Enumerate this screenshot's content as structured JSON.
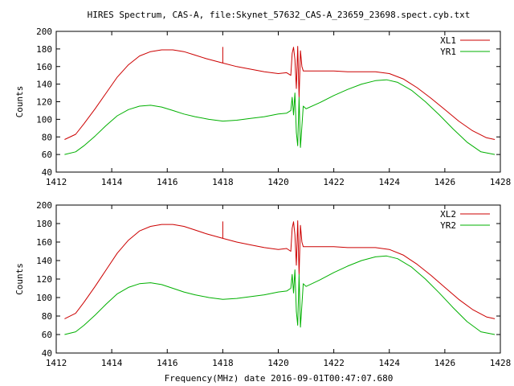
{
  "title": "HIRES Spectrum, CAS-A, file:Skynet_57632_CAS-A_23659_23698.spect.cyb.txt",
  "xlabel": "Frequency(MHz) date 2016-09-01T00:47:07.680",
  "colors": {
    "red": "#cc0000",
    "green": "#00b000"
  },
  "chart_data": [
    {
      "type": "line",
      "ylabel": "Counts",
      "xlim": [
        1412,
        1428
      ],
      "ylim": [
        40,
        200
      ],
      "xticks": [
        1412,
        1414,
        1416,
        1418,
        1420,
        1422,
        1424,
        1426,
        1428
      ],
      "yticks": [
        40,
        60,
        80,
        100,
        120,
        140,
        160,
        180,
        200
      ],
      "grid": false,
      "legend": "top-right",
      "series": [
        {
          "name": "XL1",
          "color": "#cc0000",
          "x": [
            1412.3,
            1412.7,
            1413.0,
            1413.4,
            1413.8,
            1414.2,
            1414.6,
            1415.0,
            1415.4,
            1415.8,
            1416.2,
            1416.6,
            1417.0,
            1417.4,
            1418.0,
            1418.0,
            1418.0,
            1418.0,
            1418.5,
            1419.0,
            1419.5,
            1420.0,
            1420.3,
            1420.45,
            1420.5,
            1420.55,
            1420.6,
            1420.65,
            1420.7,
            1420.75,
            1420.8,
            1420.85,
            1420.9,
            1421.0,
            1421.5,
            1422.0,
            1422.5,
            1423.0,
            1423.5,
            1424.0,
            1424.5,
            1425.0,
            1425.5,
            1426.0,
            1426.5,
            1427.0,
            1427.5,
            1427.8
          ],
          "y": [
            77,
            83,
            95,
            112,
            130,
            148,
            162,
            172,
            177,
            179,
            179,
            177,
            173,
            169,
            164,
            182,
            165,
            164,
            160,
            157,
            154,
            152,
            153,
            150,
            175,
            182,
            168,
            135,
            183,
            125,
            178,
            160,
            155,
            155,
            155,
            155,
            154,
            154,
            154,
            152,
            146,
            136,
            124,
            111,
            98,
            87,
            79,
            77
          ]
        },
        {
          "name": "YR1",
          "color": "#00b000",
          "x": [
            1412.3,
            1412.7,
            1413.0,
            1413.4,
            1413.8,
            1414.2,
            1414.6,
            1415.0,
            1415.4,
            1415.8,
            1416.2,
            1416.6,
            1417.0,
            1417.5,
            1418.0,
            1418.5,
            1419.0,
            1419.5,
            1420.0,
            1420.3,
            1420.45,
            1420.5,
            1420.55,
            1420.6,
            1420.65,
            1420.7,
            1420.75,
            1420.8,
            1420.9,
            1421.0,
            1421.5,
            1422.0,
            1422.5,
            1423.0,
            1423.5,
            1423.9,
            1424.3,
            1424.8,
            1425.3,
            1425.8,
            1426.3,
            1426.8,
            1427.3,
            1427.8
          ],
          "y": [
            60,
            63,
            70,
            81,
            93,
            104,
            111,
            115,
            116,
            114,
            110,
            106,
            103,
            100,
            98,
            99,
            101,
            103,
            106,
            107,
            110,
            125,
            105,
            130,
            85,
            70,
            125,
            68,
            115,
            112,
            119,
            127,
            134,
            140,
            144,
            145,
            142,
            133,
            120,
            105,
            89,
            74,
            63,
            60
          ]
        }
      ]
    },
    {
      "type": "line",
      "ylabel": "Counts",
      "xlim": [
        1412,
        1428
      ],
      "ylim": [
        40,
        200
      ],
      "xticks": [
        1412,
        1414,
        1416,
        1418,
        1420,
        1422,
        1424,
        1426,
        1428
      ],
      "yticks": [
        40,
        60,
        80,
        100,
        120,
        140,
        160,
        180,
        200
      ],
      "grid": false,
      "legend": "top-right",
      "series": [
        {
          "name": "XL2",
          "color": "#cc0000",
          "x": [
            1412.3,
            1412.7,
            1413.0,
            1413.4,
            1413.8,
            1414.2,
            1414.6,
            1415.0,
            1415.4,
            1415.8,
            1416.2,
            1416.6,
            1417.0,
            1417.4,
            1418.0,
            1418.0,
            1418.0,
            1418.0,
            1418.5,
            1419.0,
            1419.5,
            1420.0,
            1420.3,
            1420.45,
            1420.5,
            1420.55,
            1420.6,
            1420.65,
            1420.7,
            1420.75,
            1420.8,
            1420.85,
            1420.9,
            1421.0,
            1421.5,
            1422.0,
            1422.5,
            1423.0,
            1423.5,
            1424.0,
            1424.5,
            1425.0,
            1425.5,
            1426.0,
            1426.5,
            1427.0,
            1427.5,
            1427.8
          ],
          "y": [
            77,
            83,
            95,
            112,
            130,
            148,
            162,
            172,
            177,
            179,
            179,
            177,
            173,
            169,
            164,
            182,
            165,
            164,
            160,
            157,
            154,
            152,
            153,
            150,
            175,
            182,
            168,
            135,
            183,
            125,
            178,
            160,
            155,
            155,
            155,
            155,
            154,
            154,
            154,
            152,
            146,
            136,
            124,
            111,
            98,
            87,
            79,
            77
          ]
        },
        {
          "name": "YR2",
          "color": "#00b000",
          "x": [
            1412.3,
            1412.7,
            1413.0,
            1413.4,
            1413.8,
            1414.2,
            1414.6,
            1415.0,
            1415.4,
            1415.8,
            1416.2,
            1416.6,
            1417.0,
            1417.5,
            1418.0,
            1418.5,
            1419.0,
            1419.5,
            1420.0,
            1420.3,
            1420.45,
            1420.5,
            1420.55,
            1420.6,
            1420.65,
            1420.7,
            1420.75,
            1420.8,
            1420.9,
            1421.0,
            1421.5,
            1422.0,
            1422.5,
            1423.0,
            1423.5,
            1423.9,
            1424.3,
            1424.8,
            1425.3,
            1425.8,
            1426.3,
            1426.8,
            1427.3,
            1427.8
          ],
          "y": [
            60,
            63,
            70,
            81,
            93,
            104,
            111,
            115,
            116,
            114,
            110,
            106,
            103,
            100,
            98,
            99,
            101,
            103,
            106,
            107,
            110,
            125,
            105,
            130,
            85,
            70,
            125,
            68,
            115,
            112,
            119,
            127,
            134,
            140,
            144,
            145,
            142,
            133,
            120,
            105,
            89,
            74,
            63,
            60
          ]
        }
      ]
    }
  ]
}
